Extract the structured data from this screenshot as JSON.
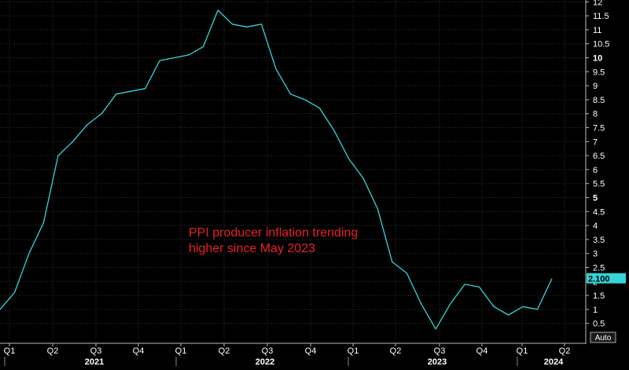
{
  "chart_data": {
    "type": "line",
    "title": "",
    "xlabel": "",
    "ylabel": "",
    "ylim": [
      0,
      12
    ],
    "grid": true,
    "y_ticks": [
      "0.5",
      "1",
      "1.5",
      "2",
      "2.5",
      "3",
      "3.5",
      "4",
      "4.5",
      "5",
      "5.5",
      "6",
      "6.5",
      "7",
      "7.5",
      "8",
      "8.5",
      "9",
      "9.5",
      "10",
      "10.5",
      "11",
      "11.5",
      "12"
    ],
    "y_ticks_bold": [
      "5",
      "10"
    ],
    "x_quarter_labels": [
      "Q1",
      "Q2",
      "Q3",
      "Q4",
      "Q1",
      "Q2",
      "Q3",
      "Q4",
      "Q1",
      "Q2",
      "Q3",
      "Q4",
      "Q1",
      "Q2"
    ],
    "x_year_labels": [
      "2021",
      "2022",
      "2023",
      "2024"
    ],
    "series": [
      {
        "name": "",
        "color": "#33d6d6",
        "x": [
          "2021-01",
          "2021-02",
          "2021-03",
          "2021-04",
          "2021-05",
          "2021-06",
          "2021-07",
          "2021-08",
          "2021-09",
          "2021-10",
          "2021-11",
          "2021-12",
          "2022-01",
          "2022-02",
          "2022-03",
          "2022-04",
          "2022-05",
          "2022-06",
          "2022-07",
          "2022-08",
          "2022-09",
          "2022-10",
          "2022-11",
          "2022-12",
          "2023-01",
          "2023-02",
          "2023-03",
          "2023-04",
          "2023-05",
          "2023-06",
          "2023-07",
          "2023-08",
          "2023-09",
          "2023-10",
          "2023-11",
          "2023-12",
          "2024-01",
          "2024-02",
          "2024-03"
        ],
        "values": [
          1.0,
          1.6,
          3.0,
          4.1,
          6.5,
          7.0,
          7.6,
          8.0,
          8.7,
          8.8,
          8.9,
          9.9,
          10.0,
          10.1,
          10.4,
          11.7,
          11.2,
          11.1,
          11.2,
          9.6,
          8.7,
          8.5,
          8.2,
          7.4,
          6.4,
          5.7,
          4.6,
          2.7,
          2.3,
          1.2,
          0.3,
          1.2,
          1.9,
          1.8,
          1.1,
          0.8,
          1.1,
          1.0,
          2.1
        ]
      }
    ],
    "last_value_label": "2.100",
    "axis_button": "Auto"
  },
  "colors": {
    "background": "#000000",
    "grid": "#2f2f2f",
    "line": "#33d6d6",
    "axis_text": "#ffffff",
    "value_tag_bg": "#33d6d6",
    "annotation": "#e8202a"
  },
  "annotation": {
    "line1": "PPI producer inflation trending",
    "line2": "higher since May 2023"
  }
}
